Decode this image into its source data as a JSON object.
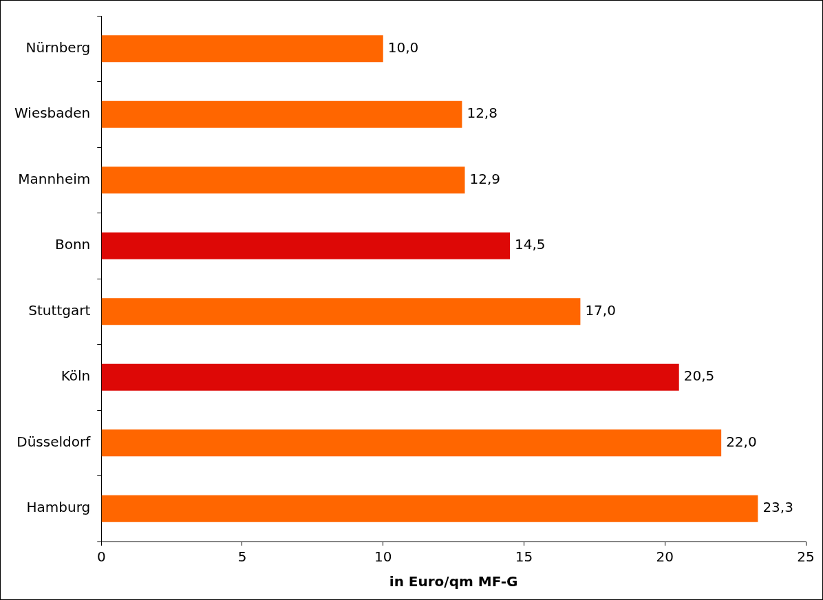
{
  "chart_data": {
    "type": "bar",
    "orientation": "horizontal",
    "xlabel": "in Euro/qm MF-G",
    "categories": [
      "Nürnberg",
      "Wiesbaden",
      "Mannheim",
      "Bonn",
      "Stuttgart",
      "Köln",
      "Düsseldorf",
      "Hamburg"
    ],
    "values": [
      10.0,
      12.8,
      12.9,
      14.5,
      17.0,
      20.5,
      22.0,
      23.3
    ],
    "colors": [
      "#ff6600",
      "#ff6600",
      "#ff6600",
      "#dd0806",
      "#ff6600",
      "#dd0806",
      "#ff6600",
      "#ff6600"
    ],
    "value_labels": [
      "10,0",
      "12,8",
      "12,9",
      "14,5",
      "17,0",
      "20,5",
      "22,0",
      "23,3"
    ],
    "xlim": [
      0,
      25
    ],
    "xticks": [
      0,
      5,
      10,
      15,
      20,
      25
    ],
    "grid": false,
    "legend": false
  }
}
